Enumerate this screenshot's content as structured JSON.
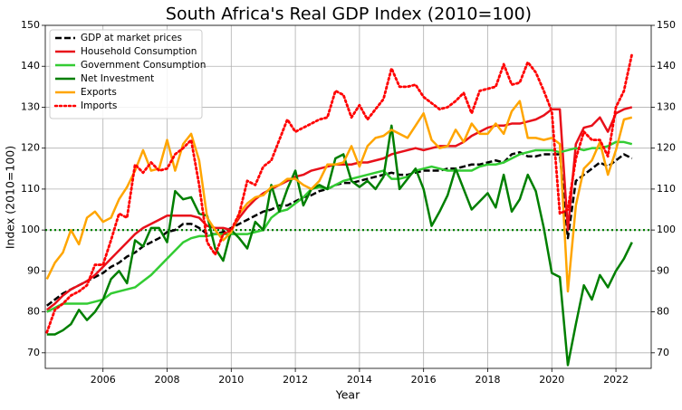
{
  "chart_data": {
    "type": "line",
    "title": "South Africa's Real GDP Index (2010=100)",
    "x_label": "Year",
    "y_label": "Index (2010=100)",
    "xlim": [
      2004.2,
      2023.1
    ],
    "xticks": [
      2006,
      2008,
      2010,
      2012,
      2014,
      2016,
      2018,
      2020,
      2022
    ],
    "ylim": [
      66.2,
      150
    ],
    "yticks": [
      70,
      80,
      90,
      100,
      110,
      120,
      130,
      140,
      150
    ],
    "y2lim": [
      66.2,
      150
    ],
    "y2ticks": [
      70,
      80,
      90,
      100,
      110,
      120,
      130,
      140,
      150
    ],
    "grid": true,
    "legend": "upper left",
    "hline": {
      "value": 100,
      "color": "#008000",
      "style": "dotted"
    },
    "x": [
      2004.25,
      2004.5,
      2004.75,
      2005,
      2005.25,
      2005.5,
      2005.75,
      2006,
      2006.25,
      2006.5,
      2006.75,
      2007,
      2007.25,
      2007.5,
      2007.75,
      2008,
      2008.25,
      2008.5,
      2008.75,
      2009,
      2009.25,
      2009.5,
      2009.75,
      2010,
      2010.25,
      2010.5,
      2010.75,
      2011,
      2011.25,
      2011.5,
      2011.75,
      2012,
      2012.25,
      2012.5,
      2012.75,
      2013,
      2013.25,
      2013.5,
      2013.75,
      2014,
      2014.25,
      2014.5,
      2014.75,
      2015,
      2015.25,
      2015.5,
      2015.75,
      2016,
      2016.25,
      2016.5,
      2016.75,
      2017,
      2017.25,
      2017.5,
      2017.75,
      2018,
      2018.25,
      2018.5,
      2018.75,
      2019,
      2019.25,
      2019.5,
      2019.75,
      2020,
      2020.25,
      2020.5,
      2020.75,
      2021,
      2021.25,
      2021.5,
      2021.75,
      2022,
      2022.25,
      2022.5
    ],
    "series": [
      {
        "name": "GDP at market prices",
        "color": "#000000",
        "style": "dashed",
        "values": [
          81.5,
          83,
          84.5,
          85.5,
          86.5,
          87.5,
          88.5,
          89.5,
          91,
          92,
          93.5,
          94.5,
          96,
          97,
          98,
          99.5,
          100,
          101.5,
          101.5,
          100.5,
          99,
          99,
          99.5,
          100.5,
          101.5,
          102.5,
          103.5,
          104.5,
          105,
          106,
          106,
          107,
          108,
          108.5,
          109.5,
          110,
          111,
          111.5,
          111.5,
          112,
          112.5,
          113,
          113.5,
          114,
          113.5,
          113.5,
          114,
          114.5,
          114.5,
          114.5,
          115,
          115,
          115.5,
          116,
          116,
          116.5,
          117,
          116.5,
          118.5,
          119,
          118,
          118,
          118.5,
          118.5,
          118.5,
          98,
          112,
          113.5,
          115,
          116.5,
          115.5,
          117,
          118.5,
          117.5
        ]
      },
      {
        "name": "Household Consumption",
        "color": "#e8101a",
        "style": "solid",
        "values": [
          80.5,
          82,
          84,
          85.5,
          86.5,
          87.5,
          89,
          91,
          93,
          95,
          97,
          99,
          100.5,
          101.5,
          102.5,
          103.5,
          103.5,
          103.5,
          103.5,
          103,
          101,
          100.5,
          100.5,
          100,
          103,
          105.5,
          107.5,
          109,
          110,
          111,
          112,
          113,
          113.5,
          114.5,
          115,
          115.5,
          116,
          116,
          116,
          116.5,
          116.5,
          117,
          117.5,
          118.5,
          119,
          119.5,
          120,
          119.5,
          120,
          120.5,
          120.5,
          120.5,
          121.5,
          123,
          124,
          125,
          125.5,
          125.5,
          126,
          126,
          126.5,
          127,
          128,
          129.5,
          129.5,
          100,
          121,
          125,
          125.5,
          127.5,
          124,
          128.5,
          129.5,
          130
        ]
      },
      {
        "name": "Government Consumption",
        "color": "#33cc33",
        "style": "solid",
        "values": [
          80,
          81,
          82,
          82,
          82,
          82,
          82.5,
          83,
          84.5,
          85,
          85.5,
          86,
          87.5,
          89,
          91,
          93,
          95,
          97,
          98,
          98.5,
          98.5,
          99,
          99,
          99,
          99,
          99,
          99.5,
          100,
          103,
          104.5,
          105,
          106.5,
          108,
          110,
          110.5,
          110,
          111,
          112,
          112.5,
          113,
          113.5,
          114,
          114.5,
          112.5,
          112.5,
          113,
          114.5,
          115,
          115.5,
          115,
          114.5,
          114.5,
          114.5,
          114.5,
          115.5,
          116,
          116,
          116.5,
          117.5,
          118.5,
          119,
          119.5,
          119.5,
          119.5,
          119,
          119.5,
          120,
          119.5,
          120,
          120,
          120.5,
          121.5,
          121.5,
          121
        ]
      },
      {
        "name": "Net Investment",
        "color": "#007f00",
        "style": "solid",
        "values": [
          74.5,
          74.5,
          75.5,
          77,
          80.5,
          78,
          80,
          83,
          88,
          90,
          87,
          97.5,
          96,
          100.5,
          100.5,
          97,
          109.5,
          107.5,
          108,
          104,
          103.5,
          95.5,
          92.5,
          100,
          98,
          95.5,
          102,
          100,
          111,
          104.5,
          110,
          114.5,
          106,
          110,
          111,
          110,
          117.5,
          118.5,
          112,
          110.5,
          112,
          110,
          113,
          125.5,
          110,
          112.5,
          115,
          110,
          101,
          104.5,
          108.5,
          115,
          110,
          105,
          107,
          109,
          105.5,
          113.5,
          104.5,
          107.5,
          113.5,
          109.5,
          100.5,
          89.5,
          88.5,
          67,
          77,
          86.5,
          83,
          89,
          86,
          90,
          93,
          97
        ]
      },
      {
        "name": "Exports",
        "color": "#ffa500",
        "style": "solid",
        "values": [
          88,
          92,
          94.5,
          100,
          96.5,
          103,
          104.5,
          102,
          103,
          107.5,
          110.5,
          114.5,
          119.5,
          114.5,
          115,
          122,
          114.5,
          121,
          123.5,
          117,
          103,
          100,
          97.5,
          99.5,
          104,
          106.5,
          108,
          108.5,
          110.5,
          111,
          112.5,
          112.5,
          111,
          110,
          112,
          116,
          116,
          116.5,
          120.5,
          115.5,
          120.5,
          122.5,
          123,
          124.5,
          123.5,
          122.5,
          125.5,
          128.5,
          122,
          120,
          120.5,
          124.5,
          121.5,
          126,
          123.5,
          123.5,
          126,
          123.5,
          129,
          131.5,
          122.5,
          122.5,
          122,
          122.5,
          121,
          85,
          106,
          115,
          117,
          121.5,
          113.5,
          119.5,
          127,
          127.5
        ]
      },
      {
        "name": "Imports",
        "color": "#ff0000",
        "style": "dotted",
        "values": [
          75,
          80.5,
          82,
          84,
          85,
          86.5,
          91.5,
          91.5,
          97.5,
          104,
          103,
          116,
          114,
          116.5,
          114.5,
          115,
          118.5,
          120,
          122,
          111,
          97,
          94,
          99,
          100,
          104,
          112,
          111,
          115.5,
          117,
          122,
          127,
          124,
          125,
          126,
          127,
          127.5,
          134,
          133,
          127.5,
          130.5,
          127,
          129.5,
          132,
          139.5,
          135,
          135,
          135.5,
          132.5,
          131,
          129.5,
          130,
          131.5,
          133.5,
          128.5,
          134,
          134.5,
          135,
          140.5,
          135.5,
          136,
          141,
          138.5,
          134,
          129,
          104,
          105,
          117.5,
          124,
          122,
          122,
          118,
          130,
          134,
          143
        ]
      }
    ]
  }
}
